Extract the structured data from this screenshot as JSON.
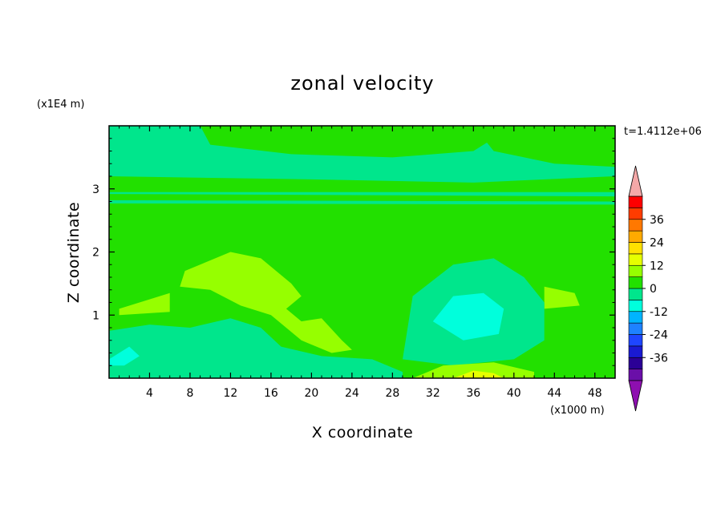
{
  "chart_data": {
    "type": "heatmap",
    "title": "zonal velocity",
    "xlabel": "X coordinate",
    "ylabel": "Z coordinate",
    "x_scale_label": "(x1000 m)",
    "y_scale_label": "(x1E4 m)",
    "time_label": "t=1.4112e+06",
    "xlim": [
      0,
      50
    ],
    "ylim": [
      0,
      4
    ],
    "x_ticks": [
      4,
      8,
      12,
      16,
      20,
      24,
      28,
      32,
      36,
      40,
      44,
      48
    ],
    "y_ticks": [
      1,
      2,
      3
    ],
    "x_tick_labels": [
      "4",
      "8",
      "12",
      "16",
      "20",
      "24",
      "28",
      "32",
      "36",
      "40",
      "44",
      "48"
    ],
    "y_tick_labels": [
      "1",
      "2",
      "3"
    ],
    "colorbar": {
      "levels": [
        -42,
        -36,
        -30,
        -24,
        -18,
        -12,
        -6,
        0,
        6,
        12,
        18,
        24,
        30,
        36,
        42
      ],
      "colors": [
        "#6a0fa8",
        "#2b0096",
        "#1a1ad2",
        "#1e46ff",
        "#1e82ff",
        "#00b4ff",
        "#00ffdc",
        "#00e68c",
        "#22e000",
        "#96ff00",
        "#e6ff00",
        "#ffe100",
        "#ffaa00",
        "#ff7800",
        "#ff3c00",
        "#ff0000"
      ],
      "under_color": "#8e0fb0",
      "over_color": "#f4a8a8",
      "tick_labels": [
        "36",
        "24",
        "12",
        "0",
        "-12",
        "-24",
        "-36"
      ],
      "tick_values": [
        36,
        24,
        12,
        0,
        -12,
        -24,
        -36
      ]
    },
    "regions": [
      {
        "level": "-6..0",
        "desc": "upper layer band",
        "polygon": [
          [
            0,
            4
          ],
          [
            50,
            4
          ],
          [
            50,
            3.2
          ],
          [
            36,
            3.1
          ],
          [
            20,
            3.15
          ],
          [
            0,
            3.2
          ]
        ]
      },
      {
        "level": "0..6",
        "desc": "upper tongue",
        "polygon": [
          [
            9,
            4
          ],
          [
            40,
            4
          ],
          [
            36,
            3.6
          ],
          [
            28,
            3.5
          ],
          [
            18,
            3.55
          ],
          [
            10,
            3.7
          ]
        ]
      },
      {
        "level": "0..6",
        "desc": "top right lobe",
        "polygon": [
          [
            36,
            4
          ],
          [
            50,
            4
          ],
          [
            50,
            3.35
          ],
          [
            44,
            3.4
          ],
          [
            38,
            3.6
          ]
        ]
      },
      {
        "level": "-6..0",
        "desc": "thin band",
        "polygon": [
          [
            0,
            2.95
          ],
          [
            50,
            2.95
          ],
          [
            50,
            2.88
          ],
          [
            0,
            2.92
          ]
        ]
      },
      {
        "level": "-6..0",
        "desc": "thin band 2",
        "polygon": [
          [
            0,
            2.82
          ],
          [
            50,
            2.8
          ],
          [
            50,
            2.75
          ],
          [
            0,
            2.77
          ]
        ]
      },
      {
        "level": "6..12",
        "desc": "central jet",
        "polygon": [
          [
            7.5,
            1.7
          ],
          [
            12,
            2.0
          ],
          [
            15,
            1.9
          ],
          [
            18,
            1.5
          ],
          [
            19,
            1.3
          ],
          [
            17.5,
            1.1
          ],
          [
            19,
            0.9
          ],
          [
            21,
            0.95
          ],
          [
            23,
            0.6
          ],
          [
            24,
            0.45
          ],
          [
            22,
            0.4
          ],
          [
            19,
            0.6
          ],
          [
            16,
            1.0
          ],
          [
            13,
            1.15
          ],
          [
            10,
            1.4
          ],
          [
            7,
            1.45
          ]
        ]
      },
      {
        "level": "6..12",
        "desc": "left patch",
        "polygon": [
          [
            1,
            1.1
          ],
          [
            6,
            1.35
          ],
          [
            6,
            1.05
          ],
          [
            1,
            1.0
          ]
        ]
      },
      {
        "level": "6..12",
        "desc": "right patch",
        "polygon": [
          [
            43,
            1.45
          ],
          [
            46,
            1.35
          ],
          [
            46.5,
            1.15
          ],
          [
            43,
            1.1
          ]
        ]
      },
      {
        "level": "-6..0",
        "desc": "eddy",
        "polygon": [
          [
            29,
            0.3
          ],
          [
            30,
            1.3
          ],
          [
            34,
            1.8
          ],
          [
            38,
            1.9
          ],
          [
            41,
            1.6
          ],
          [
            43,
            1.2
          ],
          [
            43,
            0.6
          ],
          [
            40,
            0.3
          ],
          [
            34,
            0.2
          ]
        ]
      },
      {
        "level": "-12..-6",
        "desc": "eddy core",
        "polygon": [
          [
            32,
            0.9
          ],
          [
            34,
            1.3
          ],
          [
            37,
            1.35
          ],
          [
            39,
            1.1
          ],
          [
            38.5,
            0.7
          ],
          [
            35,
            0.6
          ]
        ]
      },
      {
        "level": "-6..0",
        "desc": "lower left",
        "polygon": [
          [
            0,
            0.2
          ],
          [
            0,
            0.75
          ],
          [
            4,
            0.85
          ],
          [
            8,
            0.8
          ],
          [
            12,
            0.95
          ],
          [
            15,
            0.8
          ],
          [
            17,
            0.5
          ],
          [
            21,
            0.35
          ],
          [
            26,
            0.3
          ],
          [
            29,
            0.1
          ],
          [
            29,
            0
          ],
          [
            0,
            0
          ]
        ]
      },
      {
        "level": "-12..-6",
        "desc": "lower left core",
        "polygon": [
          [
            0,
            0.3
          ],
          [
            2,
            0.5
          ],
          [
            3,
            0.35
          ],
          [
            1.5,
            0.2
          ],
          [
            0,
            0.2
          ]
        ]
      },
      {
        "level": "6..12",
        "desc": "bottom warm",
        "polygon": [
          [
            30,
            0
          ],
          [
            33,
            0.2
          ],
          [
            38,
            0.25
          ],
          [
            42,
            0.1
          ],
          [
            42,
            0
          ],
          [
            30,
            0
          ]
        ]
      },
      {
        "level": "12..18",
        "desc": "bottom warm core",
        "polygon": [
          [
            34,
            0
          ],
          [
            36,
            0.12
          ],
          [
            38,
            0.08
          ],
          [
            39,
            0
          ]
        ]
      }
    ]
  }
}
